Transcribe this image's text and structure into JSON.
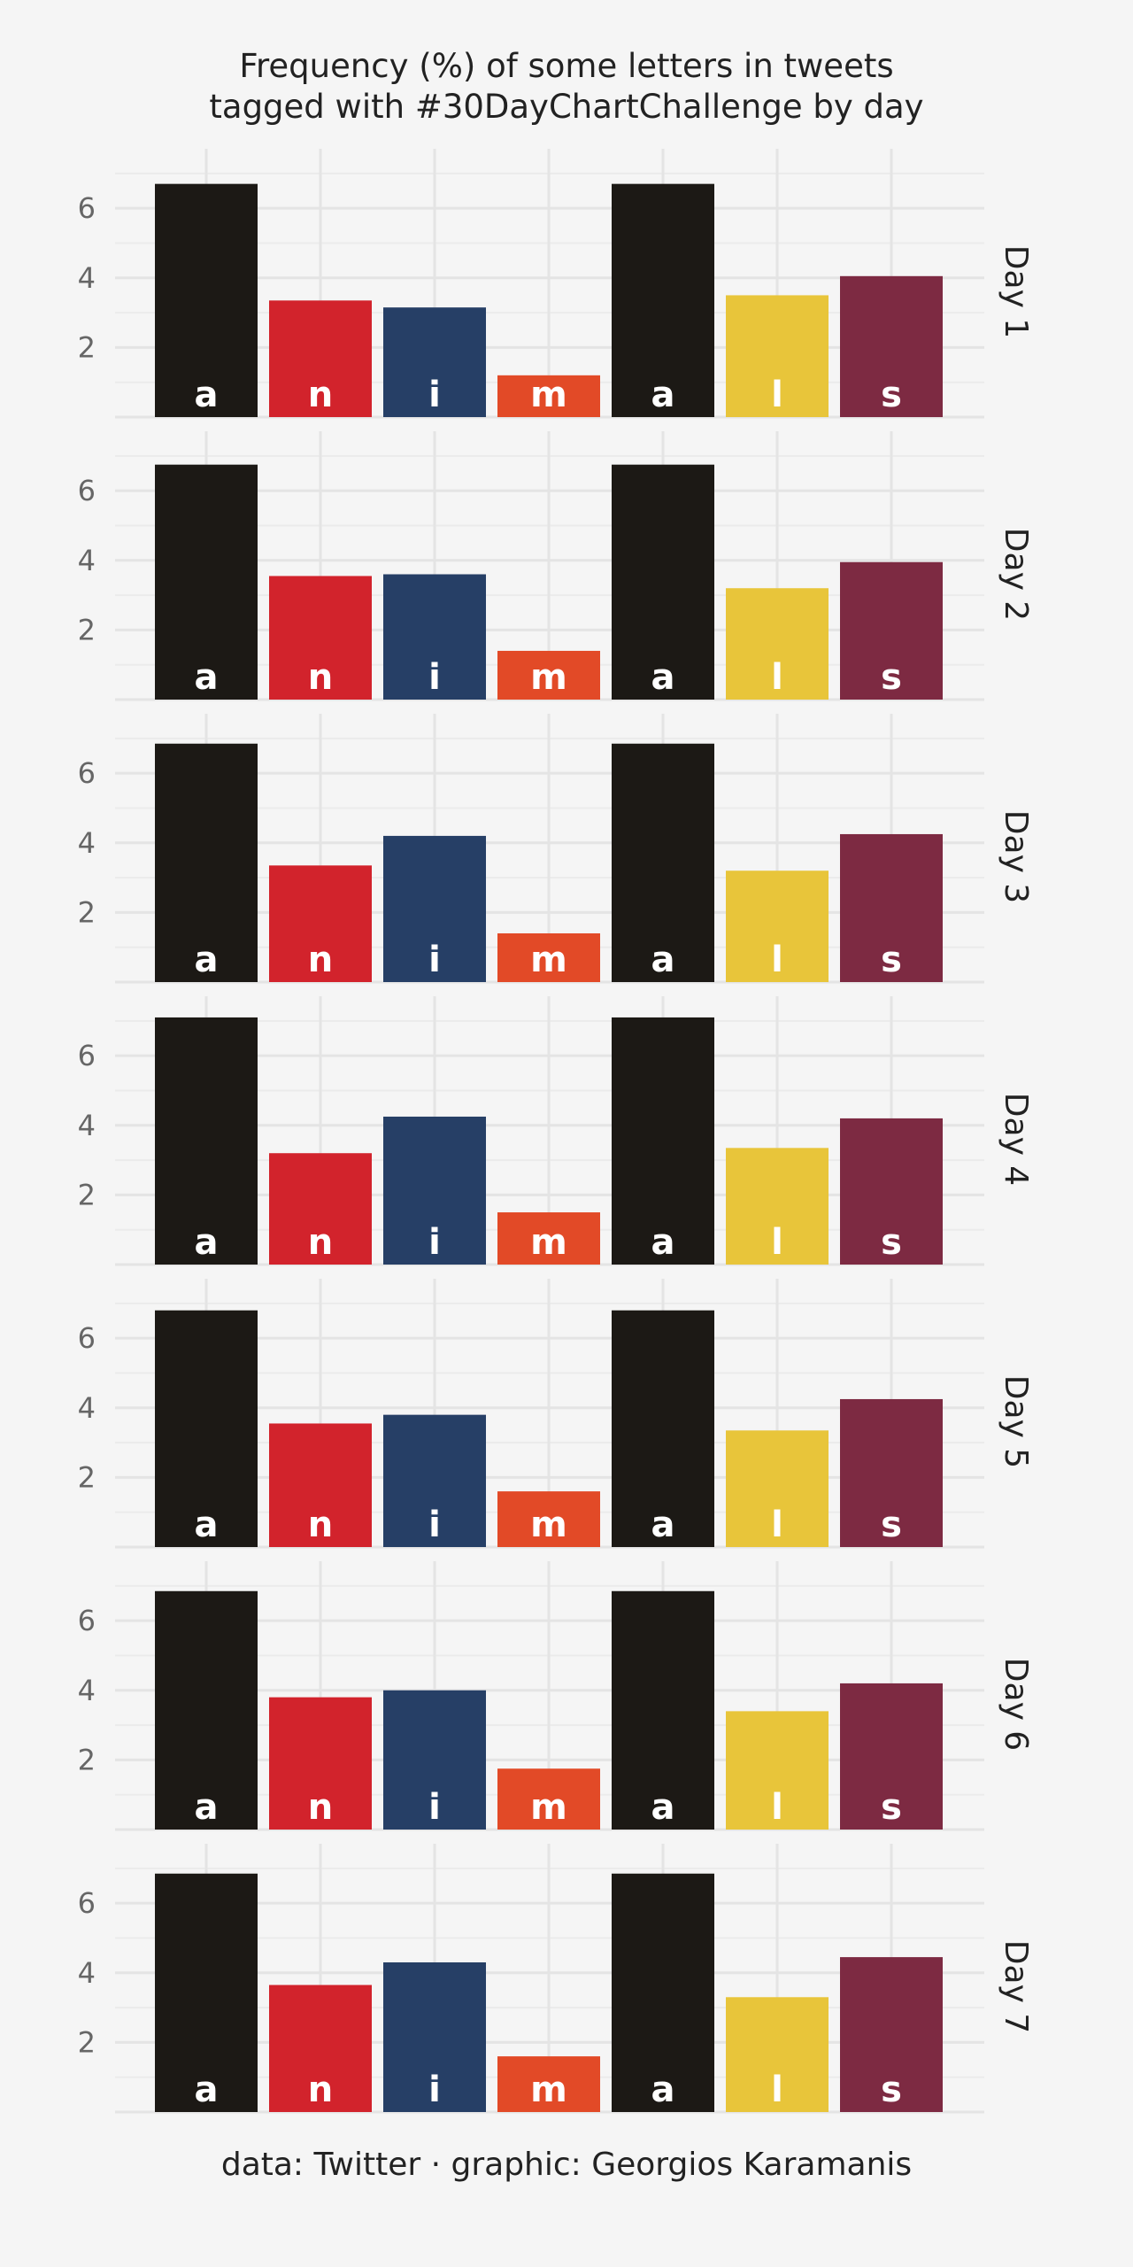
{
  "title_lines": [
    "Frequency (%) of some letters in tweets",
    "tagged with #30DayChartChallenge by day"
  ],
  "caption": "data: Twitter · graphic: Georgios Karamanis",
  "chart_data": {
    "type": "bar",
    "facet_by": "day",
    "categories": [
      "a",
      "n",
      "i",
      "m",
      "a",
      "l",
      "s"
    ],
    "colors": [
      "#1c1915",
      "#d2232c",
      "#263f66",
      "#e24a27",
      "#1c1915",
      "#e8c53a",
      "#7d2a42"
    ],
    "yticks": [
      2,
      4,
      6
    ],
    "ylim": [
      0,
      7.2
    ],
    "grid": true,
    "panels": [
      {
        "label": "Day 1",
        "values": [
          6.7,
          3.35,
          3.15,
          1.2,
          6.7,
          3.5,
          4.05
        ]
      },
      {
        "label": "Day 2",
        "values": [
          6.75,
          3.55,
          3.6,
          1.4,
          6.75,
          3.2,
          3.95
        ]
      },
      {
        "label": "Day 3",
        "values": [
          6.85,
          3.35,
          4.2,
          1.4,
          6.85,
          3.2,
          4.25
        ]
      },
      {
        "label": "Day 4",
        "values": [
          7.1,
          3.2,
          4.25,
          1.5,
          7.1,
          3.35,
          4.2
        ]
      },
      {
        "label": "Day 5",
        "values": [
          6.8,
          3.55,
          3.8,
          1.6,
          6.8,
          3.35,
          4.25
        ]
      },
      {
        "label": "Day 6",
        "values": [
          6.85,
          3.8,
          4.0,
          1.75,
          6.85,
          3.4,
          4.2
        ]
      },
      {
        "label": "Day 7",
        "values": [
          6.85,
          3.65,
          4.3,
          1.6,
          6.85,
          3.3,
          4.45
        ]
      }
    ]
  }
}
